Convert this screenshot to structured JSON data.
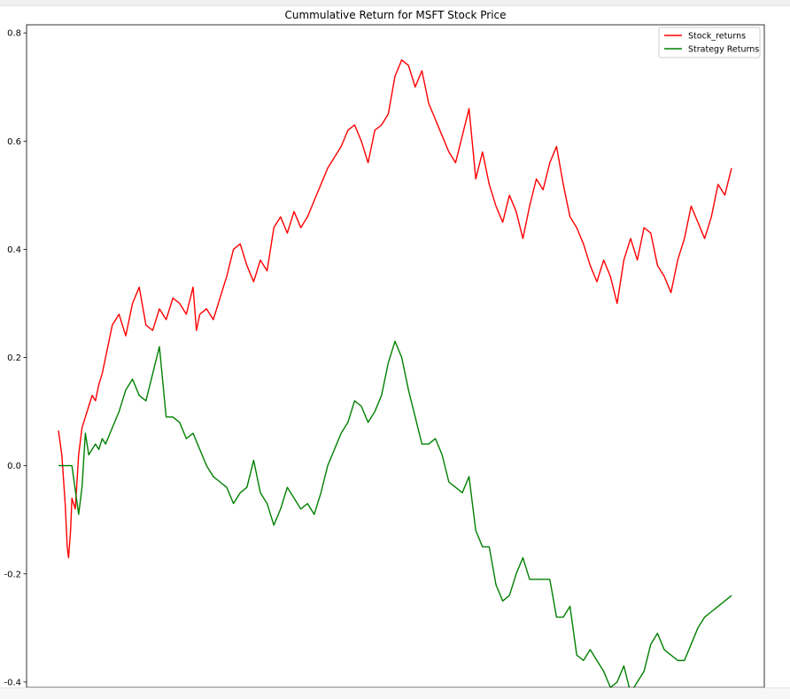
{
  "chart_data": {
    "type": "line",
    "title": "Cummulative Return for MSFT Stock Price",
    "xlabel": "",
    "ylabel": "",
    "ylim": [
      -0.41,
      0.815
    ],
    "xlim": [
      0,
      1
    ],
    "y_ticks": [
      -0.4,
      -0.2,
      0.0,
      0.2,
      0.4,
      0.6,
      0.8
    ],
    "y_tick_labels": [
      "-0.4",
      "-0.2",
      "0.0",
      "0.2",
      "0.4",
      "0.6",
      "0.8"
    ],
    "grid": false,
    "legend_position": "top-right",
    "series": [
      {
        "name": "Stock_returns",
        "color": "#ff0000",
        "x": [
          0,
          0.005,
          0.01,
          0.013,
          0.015,
          0.018,
          0.02,
          0.025,
          0.03,
          0.035,
          0.04,
          0.045,
          0.05,
          0.055,
          0.06,
          0.065,
          0.07,
          0.075,
          0.08,
          0.09,
          0.1,
          0.11,
          0.12,
          0.13,
          0.14,
          0.15,
          0.16,
          0.17,
          0.18,
          0.19,
          0.2,
          0.205,
          0.21,
          0.22,
          0.23,
          0.24,
          0.25,
          0.26,
          0.27,
          0.28,
          0.29,
          0.3,
          0.31,
          0.32,
          0.33,
          0.34,
          0.35,
          0.36,
          0.37,
          0.38,
          0.39,
          0.4,
          0.41,
          0.42,
          0.43,
          0.44,
          0.45,
          0.46,
          0.47,
          0.48,
          0.49,
          0.5,
          0.51,
          0.52,
          0.53,
          0.54,
          0.55,
          0.56,
          0.57,
          0.58,
          0.59,
          0.6,
          0.61,
          0.62,
          0.63,
          0.64,
          0.65,
          0.66,
          0.67,
          0.68,
          0.69,
          0.7,
          0.71,
          0.72,
          0.73,
          0.74,
          0.75,
          0.76,
          0.77,
          0.78,
          0.79,
          0.8,
          0.81,
          0.82,
          0.83,
          0.84,
          0.85,
          0.86,
          0.87,
          0.88,
          0.89,
          0.9,
          0.91,
          0.92,
          0.93,
          0.94,
          0.95,
          0.96,
          0.97,
          0.98,
          0.99,
          1.0
        ],
        "y": [
          0.065,
          0.02,
          -0.07,
          -0.15,
          -0.17,
          -0.12,
          -0.06,
          -0.08,
          0.02,
          0.07,
          0.09,
          0.11,
          0.13,
          0.12,
          0.15,
          0.17,
          0.2,
          0.23,
          0.26,
          0.28,
          0.24,
          0.3,
          0.33,
          0.26,
          0.25,
          0.29,
          0.27,
          0.31,
          0.3,
          0.28,
          0.33,
          0.25,
          0.28,
          0.29,
          0.27,
          0.31,
          0.35,
          0.4,
          0.41,
          0.37,
          0.34,
          0.38,
          0.36,
          0.44,
          0.46,
          0.43,
          0.47,
          0.44,
          0.46,
          0.49,
          0.52,
          0.55,
          0.57,
          0.59,
          0.62,
          0.63,
          0.6,
          0.56,
          0.62,
          0.63,
          0.65,
          0.72,
          0.75,
          0.74,
          0.7,
          0.73,
          0.67,
          0.64,
          0.61,
          0.58,
          0.56,
          0.61,
          0.66,
          0.53,
          0.58,
          0.52,
          0.48,
          0.45,
          0.5,
          0.47,
          0.42,
          0.48,
          0.53,
          0.51,
          0.56,
          0.59,
          0.52,
          0.46,
          0.44,
          0.41,
          0.37,
          0.34,
          0.38,
          0.35,
          0.3,
          0.38,
          0.42,
          0.38,
          0.44,
          0.43,
          0.37,
          0.35,
          0.32,
          0.38,
          0.42,
          0.48,
          0.45,
          0.42,
          0.46,
          0.52,
          0.5,
          0.55
        ]
      },
      {
        "name": "Strategy Returns",
        "color": "#008000",
        "x": [
          0,
          0.01,
          0.02,
          0.03,
          0.035,
          0.04,
          0.045,
          0.05,
          0.055,
          0.06,
          0.065,
          0.07,
          0.08,
          0.09,
          0.1,
          0.11,
          0.12,
          0.13,
          0.14,
          0.15,
          0.16,
          0.17,
          0.18,
          0.19,
          0.2,
          0.21,
          0.22,
          0.23,
          0.24,
          0.25,
          0.26,
          0.27,
          0.28,
          0.29,
          0.3,
          0.31,
          0.32,
          0.33,
          0.34,
          0.35,
          0.36,
          0.37,
          0.38,
          0.39,
          0.4,
          0.41,
          0.42,
          0.43,
          0.44,
          0.45,
          0.46,
          0.47,
          0.48,
          0.49,
          0.5,
          0.51,
          0.52,
          0.53,
          0.54,
          0.55,
          0.56,
          0.57,
          0.58,
          0.59,
          0.6,
          0.61,
          0.62,
          0.63,
          0.64,
          0.65,
          0.66,
          0.67,
          0.68,
          0.69,
          0.7,
          0.71,
          0.72,
          0.73,
          0.74,
          0.75,
          0.76,
          0.77,
          0.78,
          0.79,
          0.8,
          0.81,
          0.82,
          0.83,
          0.84,
          0.85,
          0.86,
          0.87,
          0.88,
          0.89,
          0.9,
          0.91,
          0.92,
          0.93,
          0.94,
          0.95,
          0.96,
          0.97,
          0.98,
          0.99,
          1.0
        ],
        "y": [
          0.0,
          0.0,
          0.0,
          -0.09,
          -0.04,
          0.06,
          0.02,
          0.03,
          0.04,
          0.03,
          0.05,
          0.04,
          0.07,
          0.1,
          0.14,
          0.16,
          0.13,
          0.12,
          0.17,
          0.22,
          0.09,
          0.09,
          0.08,
          0.05,
          0.06,
          0.03,
          0.0,
          -0.02,
          -0.03,
          -0.04,
          -0.07,
          -0.05,
          -0.04,
          0.01,
          -0.05,
          -0.07,
          -0.11,
          -0.08,
          -0.04,
          -0.06,
          -0.08,
          -0.07,
          -0.09,
          -0.05,
          0.0,
          0.03,
          0.06,
          0.08,
          0.12,
          0.11,
          0.08,
          0.1,
          0.13,
          0.19,
          0.23,
          0.2,
          0.14,
          0.09,
          0.04,
          0.04,
          0.05,
          0.02,
          -0.03,
          -0.04,
          -0.05,
          -0.02,
          -0.12,
          -0.15,
          -0.15,
          -0.22,
          -0.25,
          -0.24,
          -0.2,
          -0.17,
          -0.21,
          -0.21,
          -0.21,
          -0.21,
          -0.28,
          -0.28,
          -0.26,
          -0.35,
          -0.36,
          -0.34,
          -0.36,
          -0.38,
          -0.41,
          -0.4,
          -0.37,
          -0.42,
          -0.4,
          -0.38,
          -0.33,
          -0.31,
          -0.34,
          -0.35,
          -0.36,
          -0.36,
          -0.33,
          -0.3,
          -0.28,
          -0.27,
          -0.26,
          -0.25,
          -0.24
        ]
      }
    ]
  }
}
